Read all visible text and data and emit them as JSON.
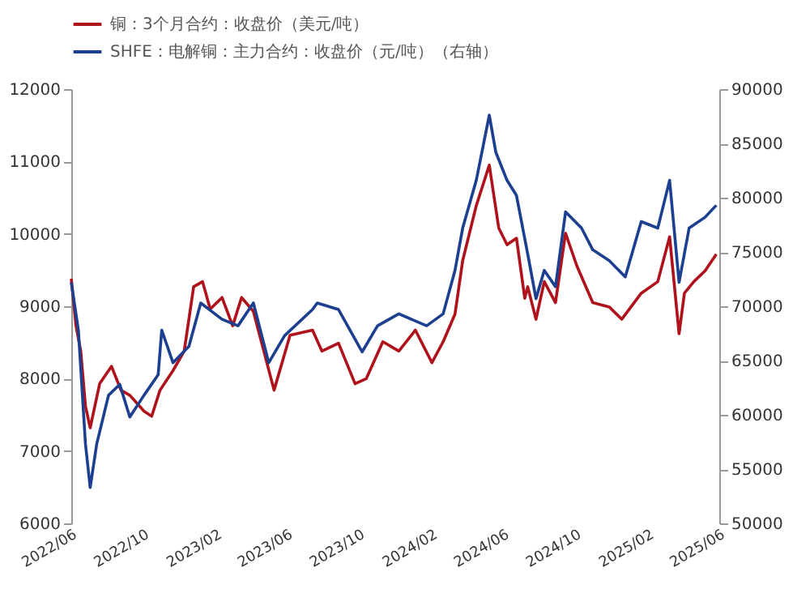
{
  "chart_data": {
    "type": "line",
    "xlim": [
      "2022-06-01",
      "2025-06-01"
    ],
    "xticks": [
      {
        "value": "2022-06-01",
        "label": "2022/06"
      },
      {
        "value": "2022-10-01",
        "label": "2022/10"
      },
      {
        "value": "2023-02-01",
        "label": "2023/02"
      },
      {
        "value": "2023-06-01",
        "label": "2023/06"
      },
      {
        "value": "2023-10-01",
        "label": "2023/10"
      },
      {
        "value": "2024-02-01",
        "label": "2024/02"
      },
      {
        "value": "2024-06-01",
        "label": "2024/06"
      },
      {
        "value": "2024-10-01",
        "label": "2024/10"
      },
      {
        "value": "2025-02-01",
        "label": "2025/02"
      },
      {
        "value": "2025-06-01",
        "label": "2025/06"
      }
    ],
    "ylim": [
      6000,
      12000
    ],
    "yticks": [
      6000,
      7000,
      8000,
      9000,
      10000,
      11000,
      12000
    ],
    "y2lim": [
      50000,
      90000
    ],
    "y2ticks": [
      50000,
      55000,
      60000,
      65000,
      70000,
      75000,
      80000,
      85000,
      90000
    ],
    "grid": false,
    "legend": "top",
    "marker": "none",
    "line_style": "solid",
    "series": [
      {
        "name": "铜：3个月合约：收盘价（美元/吨）",
        "color": "#b0121b",
        "x": [
          "2022-06-01",
          "2022-06-09",
          "2022-06-17",
          "2022-06-25",
          "2022-07-03",
          "2022-07-19",
          "2022-08-08",
          "2022-08-24",
          "2022-09-08",
          "2022-10-02",
          "2022-10-15",
          "2022-10-29",
          "2022-11-07",
          "2022-11-20",
          "2022-12-09",
          "2022-12-25",
          "2023-01-09",
          "2023-01-22",
          "2023-02-11",
          "2023-03-01",
          "2023-03-16",
          "2023-04-05",
          "2023-05-10",
          "2023-06-06",
          "2023-07-14",
          "2023-07-30",
          "2023-08-27",
          "2023-09-24",
          "2023-10-13",
          "2023-11-10",
          "2023-12-07",
          "2024-01-04",
          "2024-02-01",
          "2024-02-20",
          "2024-03-11",
          "2024-03-24",
          "2024-04-16",
          "2024-05-08",
          "2024-05-24",
          "2024-06-07",
          "2024-06-23",
          "2024-07-07",
          "2024-07-12",
          "2024-07-26",
          "2024-08-09",
          "2024-08-28",
          "2024-09-14",
          "2024-10-03",
          "2024-10-30",
          "2024-11-27",
          "2024-12-18",
          "2025-01-20",
          "2025-02-17",
          "2025-03-09",
          "2025-03-25",
          "2025-04-03",
          "2025-04-19",
          "2025-05-08",
          "2025-05-27"
        ],
        "values": [
          9380,
          8730,
          8380,
          7620,
          7320,
          7930,
          8170,
          7840,
          7770,
          7550,
          7480,
          7840,
          7950,
          8110,
          8380,
          9270,
          9340,
          8960,
          9120,
          8730,
          9120,
          8930,
          7840,
          8600,
          8670,
          8380,
          8490,
          7930,
          8000,
          8510,
          8380,
          8670,
          8220,
          8510,
          8890,
          9630,
          10390,
          10950,
          10080,
          9850,
          9940,
          9110,
          9270,
          8820,
          9340,
          9050,
          10010,
          9560,
          9050,
          8990,
          8820,
          9180,
          9340,
          9960,
          8620,
          9180,
          9340,
          9490,
          9720
        ]
      },
      {
        "name": "SHFE：电解铜：主力合约：收盘价（元/吨）（右轴）",
        "color": "#1c3f8f",
        "axis": "y2",
        "x": [
          "2022-06-01",
          "2022-06-13",
          "2022-06-25",
          "2022-07-03",
          "2022-07-14",
          "2022-08-03",
          "2022-08-22",
          "2022-09-08",
          "2022-10-02",
          "2022-10-26",
          "2022-11-01",
          "2022-11-20",
          "2022-12-17",
          "2023-01-06",
          "2023-02-11",
          "2023-03-10",
          "2023-04-05",
          "2023-05-01",
          "2023-05-28",
          "2023-07-14",
          "2023-07-22",
          "2023-08-27",
          "2023-10-06",
          "2023-11-01",
          "2023-12-07",
          "2024-01-23",
          "2024-02-20",
          "2024-03-11",
          "2024-03-24",
          "2024-04-16",
          "2024-05-08",
          "2024-05-19",
          "2024-06-07",
          "2024-06-23",
          "2024-07-12",
          "2024-07-26",
          "2024-08-09",
          "2024-08-28",
          "2024-09-14",
          "2024-10-11",
          "2024-10-30",
          "2024-11-27",
          "2024-12-24",
          "2025-01-20",
          "2025-02-17",
          "2025-03-09",
          "2025-03-25",
          "2025-04-11",
          "2025-05-08",
          "2025-05-27"
        ],
        "values": [
          72200,
          67800,
          57300,
          53300,
          57300,
          61800,
          62800,
          59800,
          61800,
          63700,
          67800,
          64800,
          66300,
          70300,
          68800,
          68200,
          70300,
          64800,
          67300,
          69700,
          70300,
          69700,
          65800,
          68200,
          69300,
          68200,
          69300,
          73300,
          77200,
          81600,
          87600,
          84200,
          81600,
          80200,
          74800,
          70700,
          73300,
          71800,
          78700,
          77200,
          75200,
          74200,
          72700,
          77800,
          77200,
          81600,
          72200,
          77200,
          78200,
          79300
        ]
      }
    ]
  }
}
